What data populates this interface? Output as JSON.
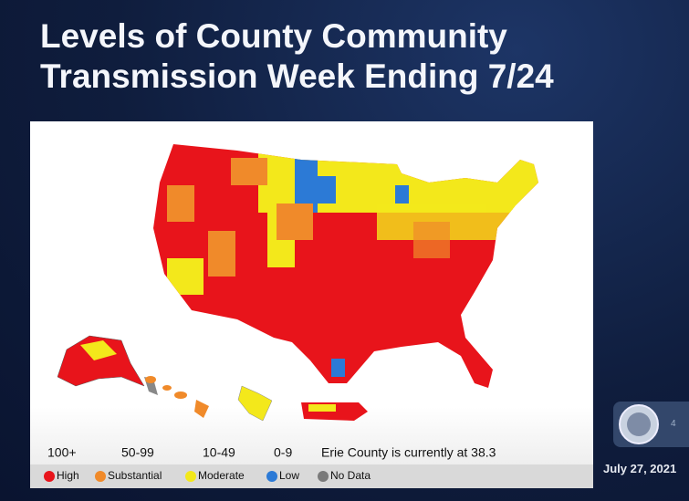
{
  "header": {
    "title_lines": [
      "Levels of County Community",
      "Transmission Week Ending 7/24"
    ]
  },
  "legend": {
    "items": [
      {
        "range": "100+",
        "label": "High",
        "color": "#e8141b"
      },
      {
        "range": "50-99",
        "label": "Substantial",
        "color": "#f08a2a"
      },
      {
        "range": "10-49",
        "label": "Moderate",
        "color": "#f3e81b"
      },
      {
        "range": "0-9",
        "label": "Low",
        "color": "#2c7ad6"
      },
      {
        "label": "No Data",
        "color": "#7a7a7a"
      }
    ],
    "note": "Erie County is currently at 38.3"
  },
  "footer": {
    "date": "July 27, 2021",
    "page": "4"
  }
}
